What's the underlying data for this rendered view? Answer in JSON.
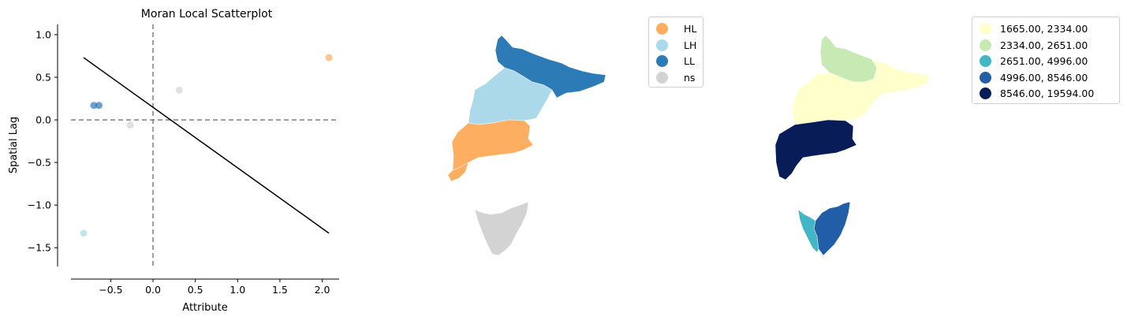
{
  "chart_data": [
    {
      "type": "scatter",
      "title": "Moran Local Scatterplot",
      "xlabel": "Attribute",
      "ylabel": "Spatial Lag",
      "xlim": [
        -0.97,
        2.2
      ],
      "ylim": [
        -1.72,
        1.12
      ],
      "xticks": [
        "-0.5",
        "0.0",
        "0.5",
        "1.0",
        "1.5",
        "2.0"
      ],
      "yticks": [
        "-1.5",
        "-1.0",
        "-0.5",
        "0.0",
        "0.5",
        "1.0"
      ],
      "reference_lines": {
        "x": 0,
        "y": 0,
        "style": "dashed",
        "color": "#7f7f7f"
      },
      "fit_line": {
        "x": [
          -0.82,
          2.08
        ],
        "y": [
          0.73,
          -1.33
        ],
        "color": "#000000"
      },
      "points": [
        {
          "x": 2.08,
          "y": 0.73,
          "cluster": "HL"
        },
        {
          "x": 0.31,
          "y": 0.35,
          "cluster": "ns"
        },
        {
          "x": -0.7,
          "y": 0.17,
          "cluster": "LL"
        },
        {
          "x": -0.64,
          "y": 0.17,
          "cluster": "LL"
        },
        {
          "x": -0.27,
          "y": -0.06,
          "cluster": "ns"
        },
        {
          "x": -0.82,
          "y": -1.33,
          "cluster": "LH"
        }
      ],
      "cluster_colors": {
        "HL": "#fdae61",
        "LH": "#abd9e9",
        "LL": "#2c7bb6",
        "ns": "#d3d3d3"
      },
      "grid": false
    },
    {
      "type": "choropleth",
      "legend": [
        {
          "label": "HL",
          "color": "#fdae61"
        },
        {
          "label": "LH",
          "color": "#abd9e9"
        },
        {
          "label": "LL",
          "color": "#2c7bb6"
        },
        {
          "label": "ns",
          "color": "#d3d3d3"
        }
      ],
      "regions": [
        {
          "cluster": "LL"
        },
        {
          "cluster": "LH"
        },
        {
          "cluster": "HL"
        },
        {
          "cluster": "ns"
        }
      ],
      "legend_position": "upper right, outside"
    },
    {
      "type": "choropleth",
      "legend": [
        {
          "label": "1665.00,  2334.00",
          "color": "#ffffcc"
        },
        {
          "label": "2334.00,  2651.00",
          "color": "#c7e9b4"
        },
        {
          "label": "2651.00,  4996.00",
          "color": "#41b6c4"
        },
        {
          "label": "4996.00,  8546.00",
          "color": "#225ea8"
        },
        {
          "label": "8546.00, 19594.00",
          "color": "#081d58"
        }
      ],
      "regions": [
        {
          "class": "2334.00,  2651.00"
        },
        {
          "class": "1665.00,  2334.00"
        },
        {
          "class": "8546.00, 19594.00"
        },
        {
          "class": "4996.00,  8546.00"
        },
        {
          "class": "2651.00,  4996.00"
        }
      ],
      "legend_position": "upper right, outside"
    }
  ]
}
